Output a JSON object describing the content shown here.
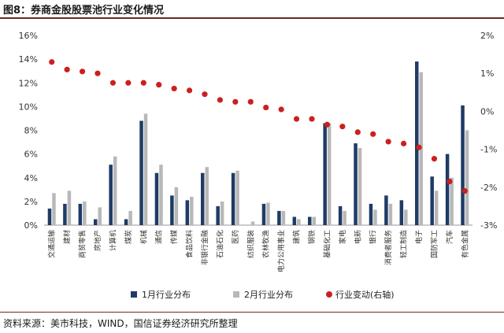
{
  "title": "图8：券商金股股票池行业变化情况",
  "source": "资料来源：美市科技，WIND，国信证券经济研究所整理",
  "colors": {
    "jan": "#1f3b66",
    "feb": "#b8b8b8",
    "change": "#cc1f1f"
  },
  "chart_data": {
    "type": "bar",
    "categories": [
      "交通运输",
      "建材",
      "商贸零售",
      "房地产",
      "计算机",
      "煤炭",
      "机械",
      "通信",
      "传媒",
      "食品饮料",
      "非银行金融",
      "石油石化",
      "医药",
      "纺织服装",
      "农林牧渔",
      "电力公用事业",
      "建筑",
      "钢铁",
      "基础化工",
      "家电",
      "电新",
      "银行",
      "消费者服务",
      "轻工制造",
      "电子",
      "国防军工",
      "汽车",
      "有色金属"
    ],
    "series": [
      {
        "name": "1月行业分布",
        "axis": "left",
        "values": [
          1.4,
          1.8,
          1.8,
          0.5,
          5.1,
          0.5,
          8.8,
          4.4,
          2.5,
          2.1,
          4.4,
          1.6,
          4.4,
          0.0,
          1.8,
          1.2,
          0.7,
          0.7,
          8.6,
          1.6,
          6.9,
          1.8,
          2.5,
          2.1,
          13.8,
          4.1,
          6.0,
          10.1
        ]
      },
      {
        "name": "2月行业分布",
        "axis": "left",
        "values": [
          2.7,
          2.9,
          2.0,
          1.5,
          5.8,
          1.2,
          9.4,
          5.1,
          3.2,
          2.4,
          4.9,
          2.0,
          4.6,
          0.3,
          1.9,
          1.2,
          0.5,
          0.7,
          8.6,
          1.2,
          6.5,
          1.3,
          1.8,
          1.3,
          12.9,
          2.9,
          4.0,
          8.0
        ]
      },
      {
        "name": "行业变动(右轴)",
        "axis": "right",
        "type": "scatter",
        "values": [
          1.3,
          1.1,
          1.05,
          1.0,
          0.75,
          0.75,
          0.75,
          0.7,
          0.6,
          0.55,
          0.45,
          0.3,
          0.25,
          0.25,
          0.1,
          0.05,
          -0.2,
          -0.2,
          -0.35,
          -0.4,
          -0.55,
          -0.6,
          -0.8,
          -0.85,
          -0.95,
          -1.25,
          -1.85,
          -2.1
        ]
      }
    ],
    "y_left": {
      "min": 0,
      "max": 16,
      "step": 2,
      "format": "percent"
    },
    "y_right": {
      "min": -3,
      "max": 2,
      "step": 1,
      "format": "percent"
    },
    "legend": {
      "position": "bottom"
    }
  }
}
